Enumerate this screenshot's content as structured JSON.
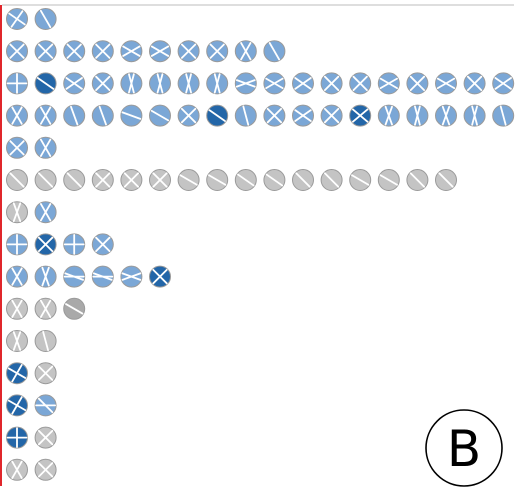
{
  "panel_label": "B",
  "colors": {
    "blue_medium": "#7ba7d6",
    "blue_dark": "#2366a8",
    "gray": "#c4c4c4",
    "gray_dark": "#a9a9a9",
    "stroke": "#9a9a9a",
    "axis_line": "#e0262b",
    "top_rule": "#bdbdbd",
    "glyph_line": "#ffffff"
  },
  "chart_data": {
    "type": "glyph-grid",
    "title": "",
    "rows": [
      {
        "glyphs": [
          {
            "color": "blue_medium",
            "angles": [
              35,
              125
            ]
          },
          {
            "color": "blue_medium",
            "angles": [
              60
            ]
          }
        ]
      },
      {
        "glyphs": [
          {
            "color": "blue_medium",
            "angles": [
              45,
              135
            ]
          },
          {
            "color": "blue_medium",
            "angles": [
              45,
              135
            ]
          },
          {
            "color": "blue_medium",
            "angles": [
              45,
              135
            ]
          },
          {
            "color": "blue_medium",
            "angles": [
              45,
              135
            ]
          },
          {
            "color": "blue_medium",
            "angles": [
              30,
              150
            ]
          },
          {
            "color": "blue_medium",
            "angles": [
              30,
              150
            ]
          },
          {
            "color": "blue_medium",
            "angles": [
              45,
              135
            ]
          },
          {
            "color": "blue_medium",
            "angles": [
              45,
              135
            ]
          },
          {
            "color": "blue_medium",
            "angles": [
              60,
              120
            ]
          },
          {
            "color": "blue_medium",
            "angles": [
              60
            ]
          }
        ]
      },
      {
        "glyphs": [
          {
            "color": "blue_medium",
            "angles": [
              0,
              90
            ]
          },
          {
            "color": "blue_dark",
            "angles": [
              35
            ]
          },
          {
            "color": "blue_medium",
            "angles": [
              35,
              145
            ]
          },
          {
            "color": "blue_medium",
            "angles": [
              45,
              135
            ]
          },
          {
            "color": "blue_medium",
            "angles": [
              75,
              105
            ]
          },
          {
            "color": "blue_medium",
            "angles": [
              75,
              105
            ]
          },
          {
            "color": "blue_medium",
            "angles": [
              75,
              105
            ]
          },
          {
            "color": "blue_medium",
            "angles": [
              75,
              105
            ]
          },
          {
            "color": "blue_medium",
            "angles": [
              20,
              160
            ]
          },
          {
            "color": "blue_medium",
            "angles": [
              30,
              150
            ]
          },
          {
            "color": "blue_medium",
            "angles": [
              35,
              145
            ]
          },
          {
            "color": "blue_medium",
            "angles": [
              45,
              135
            ]
          },
          {
            "color": "blue_medium",
            "angles": [
              45,
              135
            ]
          },
          {
            "color": "blue_medium",
            "angles": [
              30,
              150
            ]
          },
          {
            "color": "blue_medium",
            "angles": [
              45,
              135
            ]
          },
          {
            "color": "blue_medium",
            "angles": [
              30,
              150
            ]
          },
          {
            "color": "blue_medium",
            "angles": [
              45,
              135
            ]
          },
          {
            "color": "blue_medium",
            "angles": [
              35,
              145
            ]
          },
          {
            "color": "blue_medium",
            "angles": [
              60
            ]
          },
          {
            "color": "blue_medium",
            "angles": [
              45
            ]
          }
        ]
      },
      {
        "glyphs": [
          {
            "color": "blue_medium",
            "angles": [
              60,
              120
            ]
          },
          {
            "color": "blue_medium",
            "angles": [
              60,
              120
            ]
          },
          {
            "color": "blue_medium",
            "angles": [
              70
            ]
          },
          {
            "color": "blue_medium",
            "angles": [
              70
            ]
          },
          {
            "color": "blue_medium",
            "angles": [
              20
            ]
          },
          {
            "color": "blue_medium",
            "angles": [
              30
            ]
          },
          {
            "color": "blue_medium",
            "angles": [
              45,
              135
            ]
          },
          {
            "color": "blue_dark",
            "angles": [
              35
            ]
          },
          {
            "color": "blue_medium",
            "angles": [
              75
            ]
          },
          {
            "color": "blue_medium",
            "angles": [
              45,
              135
            ]
          },
          {
            "color": "blue_medium",
            "angles": [
              35,
              145
            ]
          },
          {
            "color": "blue_medium",
            "angles": [
              45,
              135
            ]
          },
          {
            "color": "blue_dark",
            "angles": [
              40,
              140
            ]
          },
          {
            "color": "blue_medium",
            "angles": [
              70,
              110
            ]
          },
          {
            "color": "blue_medium",
            "angles": [
              75,
              105
            ]
          },
          {
            "color": "blue_medium",
            "angles": [
              70,
              110
            ]
          },
          {
            "color": "blue_medium",
            "angles": [
              75,
              105
            ]
          },
          {
            "color": "blue_medium",
            "angles": [
              75
            ]
          }
        ]
      },
      {
        "glyphs": [
          {
            "color": "blue_medium",
            "angles": [
              45,
              135
            ]
          },
          {
            "color": "blue_medium",
            "angles": [
              60,
              120
            ]
          }
        ]
      },
      {
        "glyphs": [
          {
            "color": "gray",
            "angles": [
              45
            ]
          },
          {
            "color": "gray",
            "angles": [
              45
            ]
          },
          {
            "color": "gray",
            "angles": [
              45
            ]
          },
          {
            "color": "gray",
            "angles": [
              45,
              135
            ]
          },
          {
            "color": "gray",
            "angles": [
              45,
              135
            ]
          },
          {
            "color": "gray",
            "angles": [
              45,
              135
            ]
          },
          {
            "color": "gray",
            "angles": [
              30
            ]
          },
          {
            "color": "gray",
            "angles": [
              30
            ]
          },
          {
            "color": "gray",
            "angles": [
              35
            ]
          },
          {
            "color": "gray",
            "angles": [
              35
            ]
          },
          {
            "color": "gray",
            "angles": [
              45
            ]
          },
          {
            "color": "gray",
            "angles": [
              45
            ]
          },
          {
            "color": "gray",
            "angles": [
              30
            ]
          },
          {
            "color": "gray",
            "angles": [
              30
            ]
          },
          {
            "color": "gray",
            "angles": [
              45
            ]
          },
          {
            "color": "gray",
            "angles": [
              45
            ]
          }
        ]
      },
      {
        "glyphs": [
          {
            "color": "gray",
            "angles": [
              70,
              110
            ]
          },
          {
            "color": "blue_medium",
            "angles": [
              60,
              120
            ]
          }
        ]
      },
      {
        "glyphs": [
          {
            "color": "blue_medium",
            "angles": [
              0,
              90
            ]
          },
          {
            "color": "blue_dark",
            "angles": [
              45,
              135
            ]
          },
          {
            "color": "blue_medium",
            "angles": [
              0,
              90
            ]
          },
          {
            "color": "blue_medium",
            "angles": [
              45,
              135
            ]
          }
        ]
      },
      {
        "glyphs": [
          {
            "color": "blue_medium",
            "angles": [
              60,
              120
            ]
          },
          {
            "color": "blue_medium",
            "angles": [
              70,
              110
            ]
          },
          {
            "color": "blue_medium",
            "angles": [
              0,
              20
            ]
          },
          {
            "color": "blue_medium",
            "angles": [
              0,
              20
            ]
          },
          {
            "color": "blue_medium",
            "angles": [
              20,
              160
            ]
          },
          {
            "color": "blue_dark",
            "angles": [
              45,
              135
            ]
          }
        ]
      },
      {
        "glyphs": [
          {
            "color": "gray",
            "angles": [
              60,
              120
            ]
          },
          {
            "color": "gray",
            "angles": [
              60,
              120
            ]
          },
          {
            "color": "gray_dark",
            "angles": [
              30
            ]
          }
        ]
      },
      {
        "glyphs": [
          {
            "color": "gray",
            "angles": [
              70,
              110
            ]
          },
          {
            "color": "gray",
            "angles": [
              75
            ]
          }
        ]
      },
      {
        "glyphs": [
          {
            "color": "blue_dark",
            "angles": [
              30,
              120
            ]
          },
          {
            "color": "gray",
            "angles": [
              45,
              135
            ]
          }
        ]
      },
      {
        "glyphs": [
          {
            "color": "blue_dark",
            "angles": [
              30,
              120
            ]
          },
          {
            "color": "blue_medium",
            "angles": [
              0,
              45
            ]
          }
        ]
      },
      {
        "glyphs": [
          {
            "color": "blue_dark",
            "angles": [
              0,
              90
            ]
          },
          {
            "color": "gray",
            "angles": [
              45,
              135
            ]
          }
        ]
      },
      {
        "glyphs": [
          {
            "color": "gray",
            "angles": [
              60,
              120
            ]
          },
          {
            "color": "gray",
            "angles": [
              45,
              135
            ]
          }
        ]
      }
    ]
  }
}
